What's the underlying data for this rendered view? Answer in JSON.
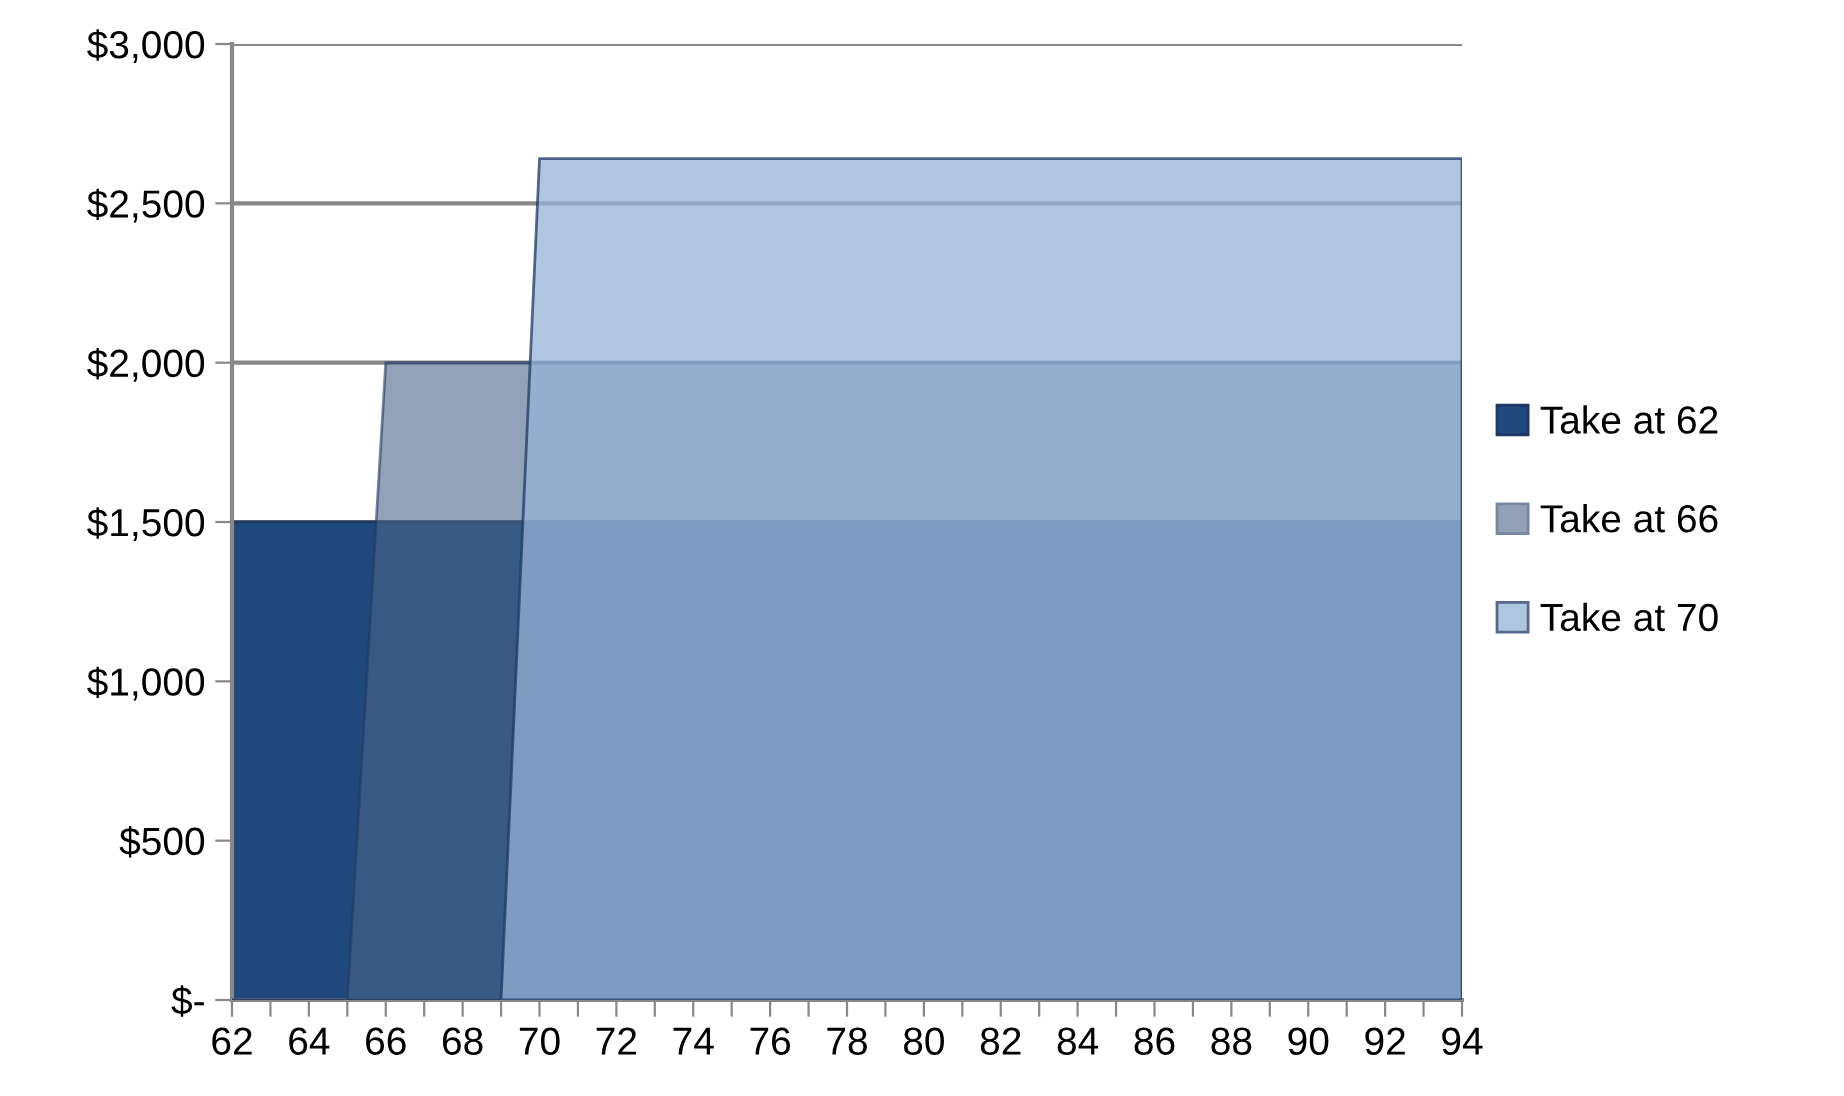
{
  "chart_data": {
    "type": "area",
    "x": [
      62,
      63,
      64,
      65,
      66,
      67,
      68,
      69,
      70,
      71,
      72,
      73,
      74,
      75,
      76,
      77,
      78,
      79,
      80,
      81,
      82,
      83,
      84,
      85,
      86,
      87,
      88,
      89,
      90,
      91,
      92,
      93,
      94
    ],
    "series": [
      {
        "name": "Take at 62",
        "color": "#1f497d",
        "values": [
          1500,
          1500,
          1500,
          1500,
          1500,
          1500,
          1500,
          1500,
          1500,
          1500,
          1500,
          1500,
          1500,
          1500,
          1500,
          1500,
          1500,
          1500,
          1500,
          1500,
          1500,
          1500,
          1500,
          1500,
          1500,
          1500,
          1500,
          1500,
          1500,
          1500,
          1500,
          1500,
          1500
        ]
      },
      {
        "name": "Take at 66",
        "color": "#4a6489",
        "values": [
          0,
          0,
          0,
          0,
          2000,
          2000,
          2000,
          2000,
          2000,
          2000,
          2000,
          2000,
          2000,
          2000,
          2000,
          2000,
          2000,
          2000,
          2000,
          2000,
          2000,
          2000,
          2000,
          2000,
          2000,
          2000,
          2000,
          2000,
          2000,
          2000,
          2000,
          2000,
          2000
        ]
      },
      {
        "name": "Take at 70",
        "color": "#95b3d7",
        "values": [
          0,
          0,
          0,
          0,
          0,
          0,
          0,
          0,
          2640,
          2640,
          2640,
          2640,
          2640,
          2640,
          2640,
          2640,
          2640,
          2640,
          2640,
          2640,
          2640,
          2640,
          2640,
          2640,
          2640,
          2640,
          2640,
          2640,
          2640,
          2640,
          2640,
          2640,
          2640
        ]
      }
    ],
    "xlim": [
      62,
      94
    ],
    "xticks": [
      62,
      {
        "value": 63,
        "label": null
      },
      64,
      {
        "value": 65,
        "label": null
      },
      66,
      {
        "value": 67,
        "label": null
      },
      68,
      {
        "value": 69,
        "label": null
      },
      70,
      {
        "value": 71,
        "label": null
      },
      72,
      {
        "value": 73,
        "label": null
      },
      74,
      {
        "value": 75,
        "label": null
      },
      76,
      {
        "value": 77,
        "label": null
      },
      78,
      {
        "value": 79,
        "label": null
      },
      80,
      {
        "value": 81,
        "label": null
      },
      82,
      {
        "value": 83,
        "label": null
      },
      84,
      {
        "value": 85,
        "label": null
      },
      86,
      {
        "value": 87,
        "label": null
      },
      88,
      {
        "value": 89,
        "label": null
      },
      90,
      {
        "value": 91,
        "label": null
      },
      92,
      {
        "value": 93,
        "label": null
      },
      94
    ],
    "ylim": [
      0,
      3000
    ],
    "yticks": [
      {
        "value": 0,
        "label": "$-"
      },
      {
        "value": 500,
        "label": "$500"
      },
      {
        "value": 1000,
        "label": "$1,000"
      },
      {
        "value": 1500,
        "label": "$1,500"
      },
      {
        "value": 2000,
        "label": "$2,000"
      },
      {
        "value": 2500,
        "label": "$2,500"
      },
      {
        "value": 3000,
        "label": "$3,000"
      }
    ],
    "grid": "y",
    "legend": "right"
  }
}
